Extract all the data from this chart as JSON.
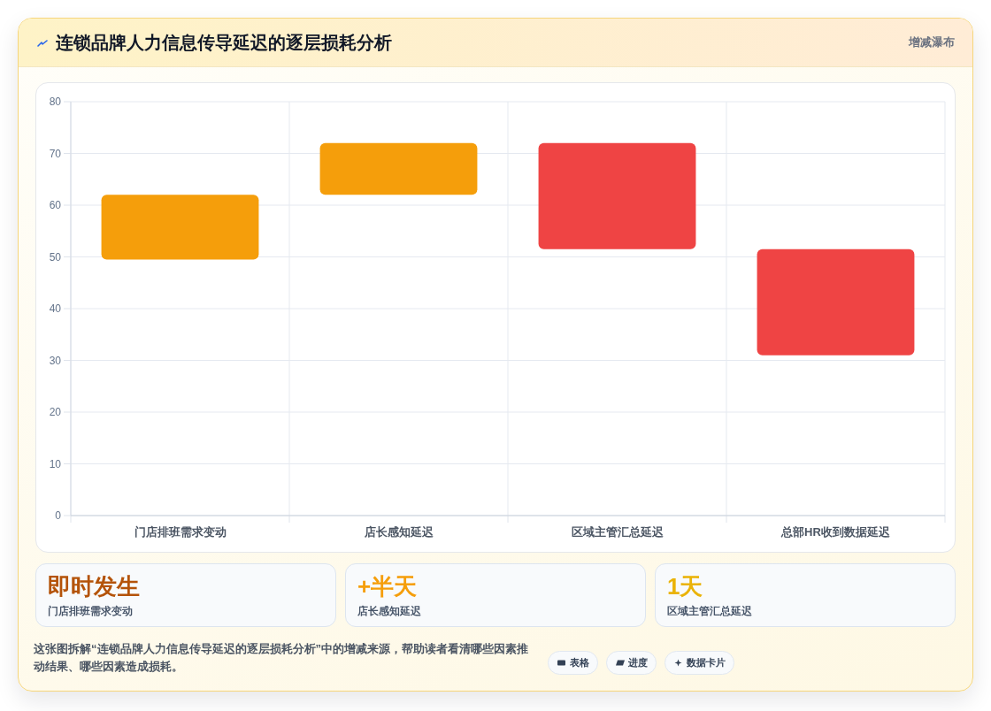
{
  "chart_data": [
    {
      "type": "bar",
      "title": "连锁品牌人力信息传导延迟的逐层损耗分析",
      "subtitle": "增减瀑布",
      "categories": [
        "门店排班需求变动",
        "店长感知延迟",
        "区域主管汇总延迟",
        "总部HR收到数据延迟"
      ],
      "base": [
        49.5,
        62,
        72,
        51.5
      ],
      "values": [
        12.5,
        10,
        -20.5,
        -20.5
      ],
      "colors": [
        "#f59e0b",
        "#f59e0b",
        "#ef4444",
        "#ef4444"
      ],
      "ylim": [
        0,
        80
      ],
      "yticks": [
        0,
        10,
        20,
        30,
        40,
        50,
        60,
        70,
        80
      ],
      "grid": true
    },
    {
      "type": "other",
      "title": "即时发生",
      "subtitle": "门店排班需求变动",
      "color": "#b45309"
    },
    {
      "type": "other",
      "title": "+半天",
      "subtitle": "店长感知延迟",
      "color": "#f59e0b"
    },
    {
      "type": "other",
      "title": "1天",
      "subtitle": "区域主管汇总延迟",
      "color": "#eab308"
    },
    {
      "type": "other",
      "annotations": [
        "这张图拆解“连锁品牌人力信息传导延迟的逐层损耗分析”中的增减来源，帮助读者看清哪些因素推动结果、哪些因素造成损耗。",
        "表格",
        "进度",
        "数据卡片"
      ]
    }
  ]
}
